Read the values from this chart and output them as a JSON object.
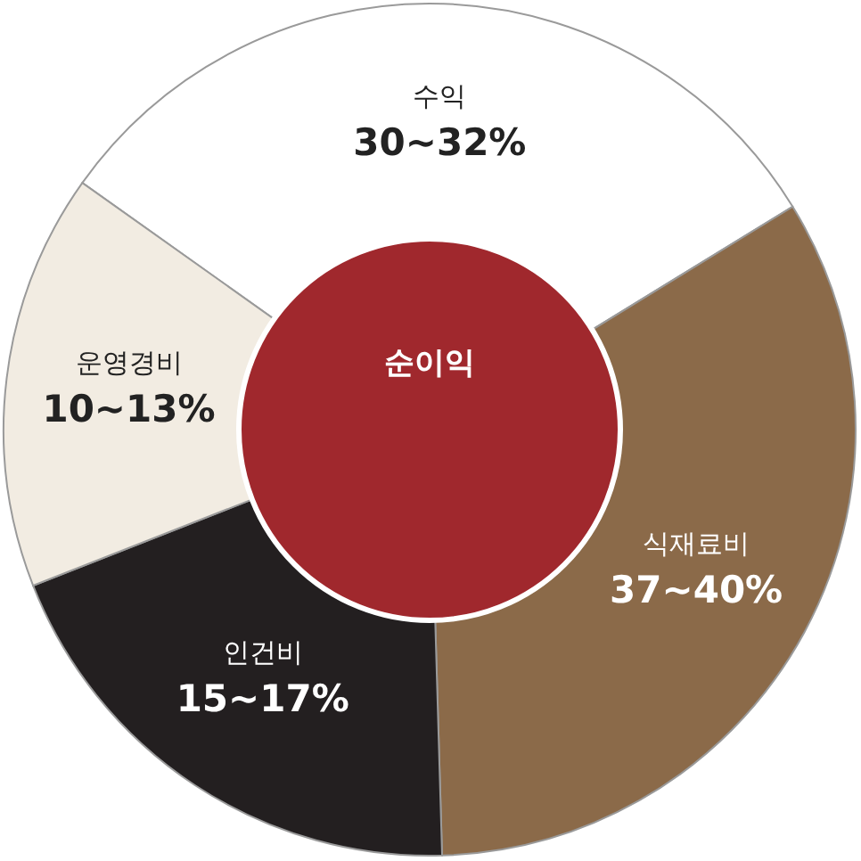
{
  "chart_data": {
    "type": "donut",
    "categories": [
      "수익",
      "식재료비",
      "인건비",
      "운영경비"
    ],
    "values": [
      31.4,
      33.3,
      19.5,
      15.8
    ],
    "colors": [
      "#ffffff",
      "#8b6a49",
      "#231f20",
      "#f2ece2"
    ],
    "annotations": [
      {
        "text": "30~32%",
        "x": "수익"
      },
      {
        "text": "37~40%",
        "x": "식재료비"
      },
      {
        "text": "15~17%",
        "x": "인건비"
      },
      {
        "text": "10~13%",
        "x": "운영경비"
      },
      "순이익"
    ]
  }
}
